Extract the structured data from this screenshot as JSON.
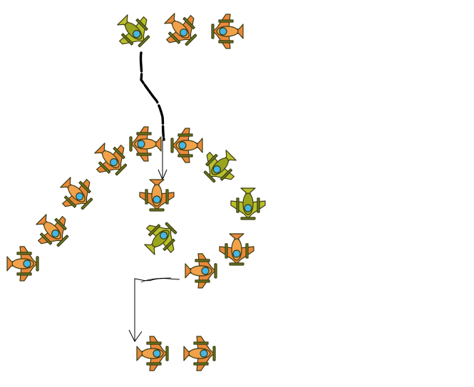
{
  "scene": {
    "background": "#ffffff",
    "sprite_palette": {
      "orange_body": "#f2a24a",
      "orange_wing": "#e8893a",
      "olive_body": "#9aa51e",
      "olive_wing": "#b9bf2a",
      "cockpit": "#45b7e6",
      "outline": "#3b3a12",
      "propeller": "#6b7a1f"
    },
    "sprites": [
      {
        "id": "top-1",
        "kind": "olive-fighter",
        "heading": "down-right"
      },
      {
        "id": "top-2",
        "kind": "orange-fighter",
        "heading": "down-right"
      },
      {
        "id": "top-3",
        "kind": "orange-fighter",
        "heading": "left"
      },
      {
        "id": "ring-1",
        "kind": "orange-fighter",
        "heading": "left"
      },
      {
        "id": "ring-2",
        "kind": "orange-fighter",
        "heading": "left"
      },
      {
        "id": "ring-3",
        "kind": "olive-fighter",
        "heading": "down-left"
      },
      {
        "id": "ring-4",
        "kind": "olive-fighter",
        "heading": "down"
      },
      {
        "id": "ring-5",
        "kind": "orange-fighter",
        "heading": "down"
      },
      {
        "id": "ring-6",
        "kind": "orange-fighter",
        "heading": "right"
      },
      {
        "id": "center-1",
        "kind": "orange-fighter",
        "heading": "down"
      },
      {
        "id": "center-2",
        "kind": "olive-fighter",
        "heading": "up-right"
      },
      {
        "id": "left-1",
        "kind": "orange-fighter",
        "heading": "down-right"
      },
      {
        "id": "left-2",
        "kind": "orange-fighter",
        "heading": "down-right"
      },
      {
        "id": "left-3",
        "kind": "orange-fighter",
        "heading": "down-right"
      },
      {
        "id": "left-4",
        "kind": "orange-fighter",
        "heading": "right"
      },
      {
        "id": "bottom-1",
        "kind": "orange-fighter",
        "heading": "right"
      },
      {
        "id": "bottom-2",
        "kind": "orange-fighter",
        "heading": "right"
      }
    ]
  }
}
